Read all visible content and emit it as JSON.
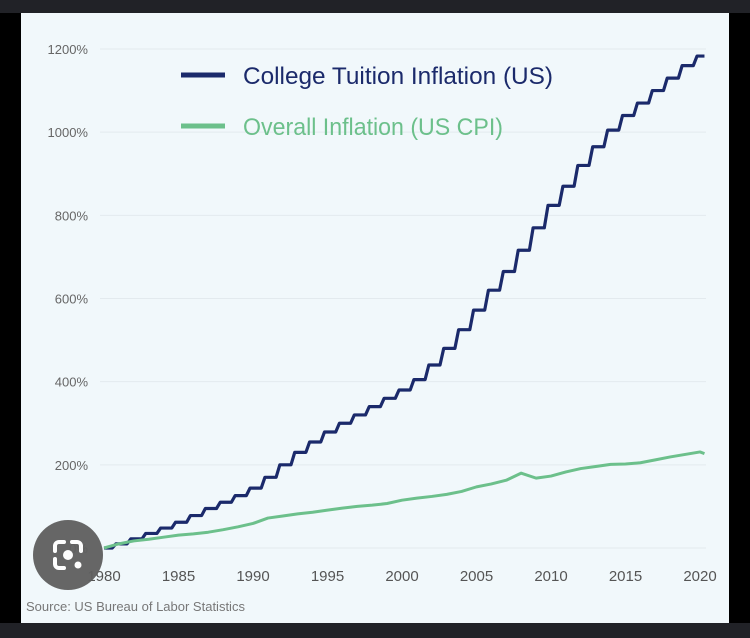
{
  "chart_data": {
    "type": "line",
    "title": "",
    "xlabel": "",
    "ylabel": "",
    "xlim": [
      1980,
      2020
    ],
    "ylim": [
      0,
      1200
    ],
    "x_ticks": [
      "1980",
      "1985",
      "1990",
      "1995",
      "2000",
      "2005",
      "2010",
      "2015",
      "2020"
    ],
    "y_ticks": [
      "0%",
      "200%",
      "400%",
      "600%",
      "800%",
      "1000%",
      "1200%"
    ],
    "grid": "horizontal",
    "legend_placement": "top-left",
    "x": [
      1980,
      1981,
      1982,
      1983,
      1984,
      1985,
      1986,
      1987,
      1988,
      1989,
      1990,
      1991,
      1992,
      1993,
      1994,
      1995,
      1996,
      1997,
      1998,
      1999,
      2000,
      2001,
      2002,
      2003,
      2004,
      2005,
      2006,
      2007,
      2008,
      2009,
      2010,
      2011,
      2012,
      2013,
      2014,
      2015,
      2016,
      2017,
      2018,
      2019,
      2020
    ],
    "series": [
      {
        "name": "College Tuition Inflation (US)",
        "color": "#1b2a6b",
        "values": [
          0,
          10,
          22,
          35,
          48,
          62,
          78,
          95,
          110,
          126,
          144,
          170,
          200,
          230,
          255,
          279,
          300,
          320,
          340,
          360,
          380,
          405,
          440,
          480,
          525,
          572,
          620,
          665,
          716,
          770,
          824,
          870,
          920,
          965,
          1005,
          1040,
          1070,
          1100,
          1130,
          1160,
          1183
        ]
      },
      {
        "name": "Overall Inflation (US CPI)",
        "color": "#6cc08b",
        "values": [
          0,
          10,
          17,
          21,
          26,
          31,
          34,
          38,
          44,
          51,
          59,
          72,
          77,
          82,
          86,
          91,
          96,
          100,
          103,
          107,
          115,
          120,
          124,
          129,
          136,
          147,
          154,
          163,
          180,
          168,
          173,
          183,
          191,
          196,
          201,
          202,
          205,
          212,
          219,
          225,
          231
        ]
      }
    ],
    "source": "Source: US Bureau of Labor Statistics"
  },
  "overlay": {
    "icon": "google-lens-camera-icon"
  }
}
